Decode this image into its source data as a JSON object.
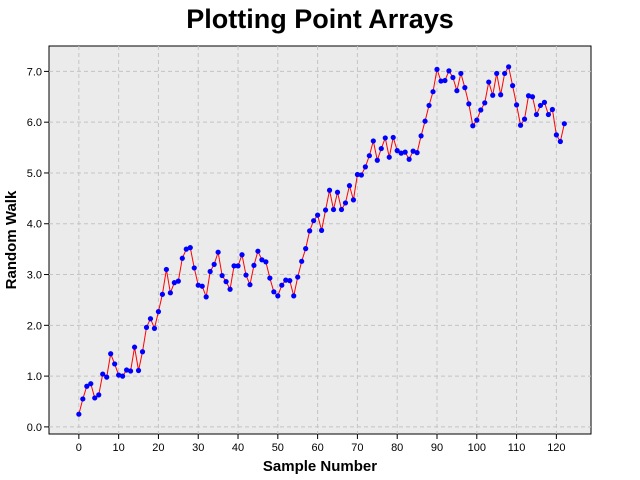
{
  "chart_data": {
    "type": "line",
    "title": "Plotting Point Arrays",
    "xlabel": "Sample Number",
    "ylabel": "Random Walk",
    "xlim": [
      -7.5,
      128.7
    ],
    "ylim": [
      -0.14,
      7.5
    ],
    "xticks": [
      0,
      10,
      20,
      30,
      40,
      50,
      60,
      70,
      80,
      90,
      100,
      110,
      120
    ],
    "xtick_labels": [
      "0",
      "10",
      "20",
      "30",
      "40",
      "50",
      "60",
      "70",
      "80",
      "90",
      "100",
      "110",
      "120"
    ],
    "yticks": [
      0,
      1,
      2,
      3,
      4,
      5,
      6,
      7
    ],
    "ytick_labels": [
      "0.0",
      "1.0",
      "2.0",
      "3.0",
      "4.0",
      "5.0",
      "6.0",
      "7.0"
    ],
    "grid": true,
    "line_color": "#ff0000",
    "marker_color": "#0000ff",
    "plot_background": "#ebebeb",
    "series": [
      {
        "name": "Random Walk",
        "x": [
          0,
          1,
          2,
          3,
          4,
          5,
          6,
          7,
          8,
          9,
          10,
          11,
          12,
          13,
          14,
          15,
          16,
          17,
          18,
          19,
          20,
          21,
          22,
          23,
          24,
          25,
          26,
          27,
          28,
          29,
          30,
          31,
          32,
          33,
          34,
          35,
          36,
          37,
          38,
          39,
          40,
          41,
          42,
          43,
          44,
          45,
          46,
          47,
          48,
          49,
          50,
          51,
          52,
          53,
          54,
          55,
          56,
          57,
          58,
          59,
          60,
          61,
          62,
          63,
          64,
          65,
          66,
          67,
          68,
          69,
          70,
          71,
          72,
          73,
          74,
          75,
          76,
          77,
          78,
          79,
          80,
          81,
          82,
          83,
          84,
          85,
          86,
          87,
          88,
          89,
          90,
          91,
          92,
          93,
          94,
          95,
          96,
          97,
          98,
          99,
          100,
          101,
          102,
          103,
          104,
          105,
          106,
          107,
          108,
          109,
          110,
          111,
          112,
          113,
          114,
          115,
          116,
          117,
          118,
          119,
          120,
          121,
          122
        ],
        "values": [
          0.25,
          0.55,
          0.8,
          0.85,
          0.57,
          0.63,
          1.04,
          0.98,
          1.44,
          1.24,
          1.02,
          1.0,
          1.12,
          1.1,
          1.57,
          1.11,
          1.48,
          1.96,
          2.13,
          1.94,
          2.27,
          2.61,
          3.1,
          2.64,
          2.84,
          2.87,
          3.32,
          3.5,
          3.53,
          3.13,
          2.79,
          2.77,
          2.56,
          3.06,
          3.2,
          3.44,
          2.98,
          2.86,
          2.71,
          3.17,
          3.17,
          3.39,
          2.99,
          2.8,
          3.18,
          3.46,
          3.29,
          3.25,
          2.93,
          2.66,
          2.58,
          2.79,
          2.89,
          2.88,
          2.58,
          2.95,
          3.26,
          3.51,
          3.86,
          4.06,
          4.17,
          3.87,
          4.27,
          4.66,
          4.28,
          4.62,
          4.28,
          4.41,
          4.75,
          4.47,
          4.97,
          4.96,
          5.12,
          5.34,
          5.63,
          5.25,
          5.48,
          5.69,
          5.31,
          5.7,
          5.44,
          5.39,
          5.41,
          5.27,
          5.43,
          5.4,
          5.73,
          6.02,
          6.33,
          6.6,
          7.04,
          6.81,
          6.82,
          7.01,
          6.88,
          6.62,
          6.96,
          6.68,
          6.36,
          5.93,
          6.04,
          6.24,
          6.38,
          6.79,
          6.53,
          6.96,
          6.54,
          6.96,
          7.09,
          6.72,
          6.34,
          5.94,
          6.06,
          6.52,
          6.5,
          6.15,
          6.33,
          6.39,
          6.15,
          6.25,
          5.75,
          5.62,
          5.97
        ]
      }
    ]
  }
}
